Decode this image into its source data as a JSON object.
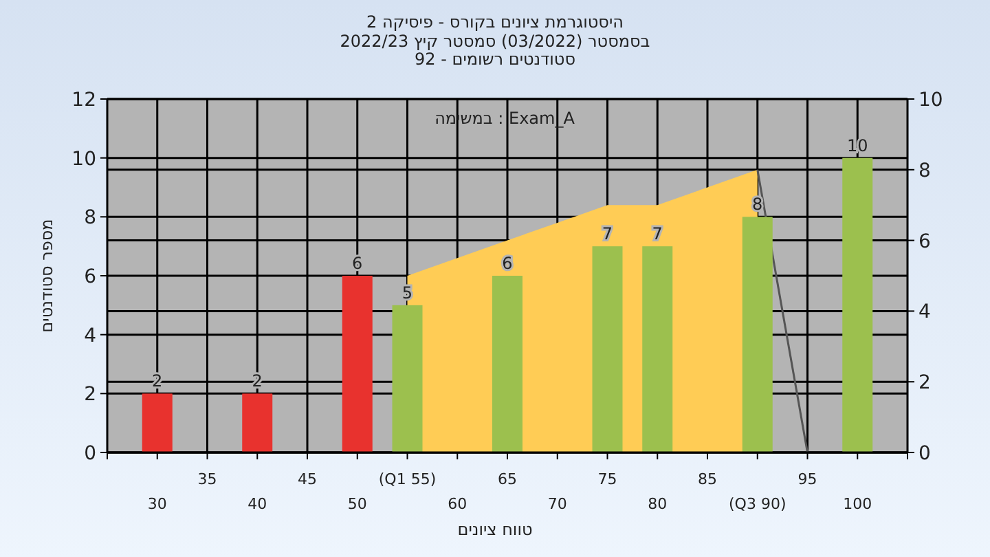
{
  "chart_data": {
    "type": "bar",
    "title": "היסטוגרמת ציונים בקורס - פיסיקה 2",
    "subtitle": "בסמסטר (03/2022) סמסטר קיץ 2022/23\nסטודנטים רשומים - 92",
    "xlabel": "טווח ציונים",
    "ylabel": "מספר סטודנטים",
    "annotations": [
      "במשימה : Exam_A"
    ],
    "categories": [
      "30",
      "35",
      "40",
      "45",
      "50",
      "(Q1 55)",
      "60",
      "65",
      "70",
      "75",
      "80",
      "85",
      "(Q3 90)",
      "95",
      "100"
    ],
    "series": [
      {
        "type": "area",
        "axis": "y2",
        "color": "#ffcc55",
        "values": [
          null,
          null,
          null,
          null,
          null,
          5,
          5.5,
          6,
          6.5,
          7,
          7,
          7.5,
          8,
          null,
          null
        ]
      },
      {
        "type": "line",
        "axis": "y2",
        "color": "#555555",
        "values": [
          null,
          null,
          null,
          null,
          null,
          null,
          null,
          null,
          null,
          null,
          null,
          null,
          8,
          0,
          null
        ]
      },
      {
        "colors": [
          "#e8322e",
          null,
          "#e8322e",
          null,
          "#e8322e",
          "#9cc04e",
          null,
          "#9cc04e",
          null,
          "#9cc04e",
          "#9cc04e",
          null,
          "#9cc04e",
          null,
          "#9cc04e"
        ],
        "values": [
          2,
          null,
          2,
          null,
          6,
          5,
          null,
          6,
          null,
          7,
          7,
          null,
          8,
          null,
          10
        ],
        "value_labels": [
          "2",
          null,
          "2",
          null,
          "6",
          "5",
          null,
          "6",
          null,
          "7",
          "7",
          null,
          "8",
          null,
          "10"
        ]
      }
    ],
    "ylim": [
      0,
      12
    ],
    "yticks": [
      0,
      2,
      4,
      6,
      8,
      10,
      12
    ],
    "y2lim": [
      0,
      10
    ],
    "y2ticks": [
      0,
      2,
      4,
      6,
      8,
      10
    ],
    "grid": true
  }
}
